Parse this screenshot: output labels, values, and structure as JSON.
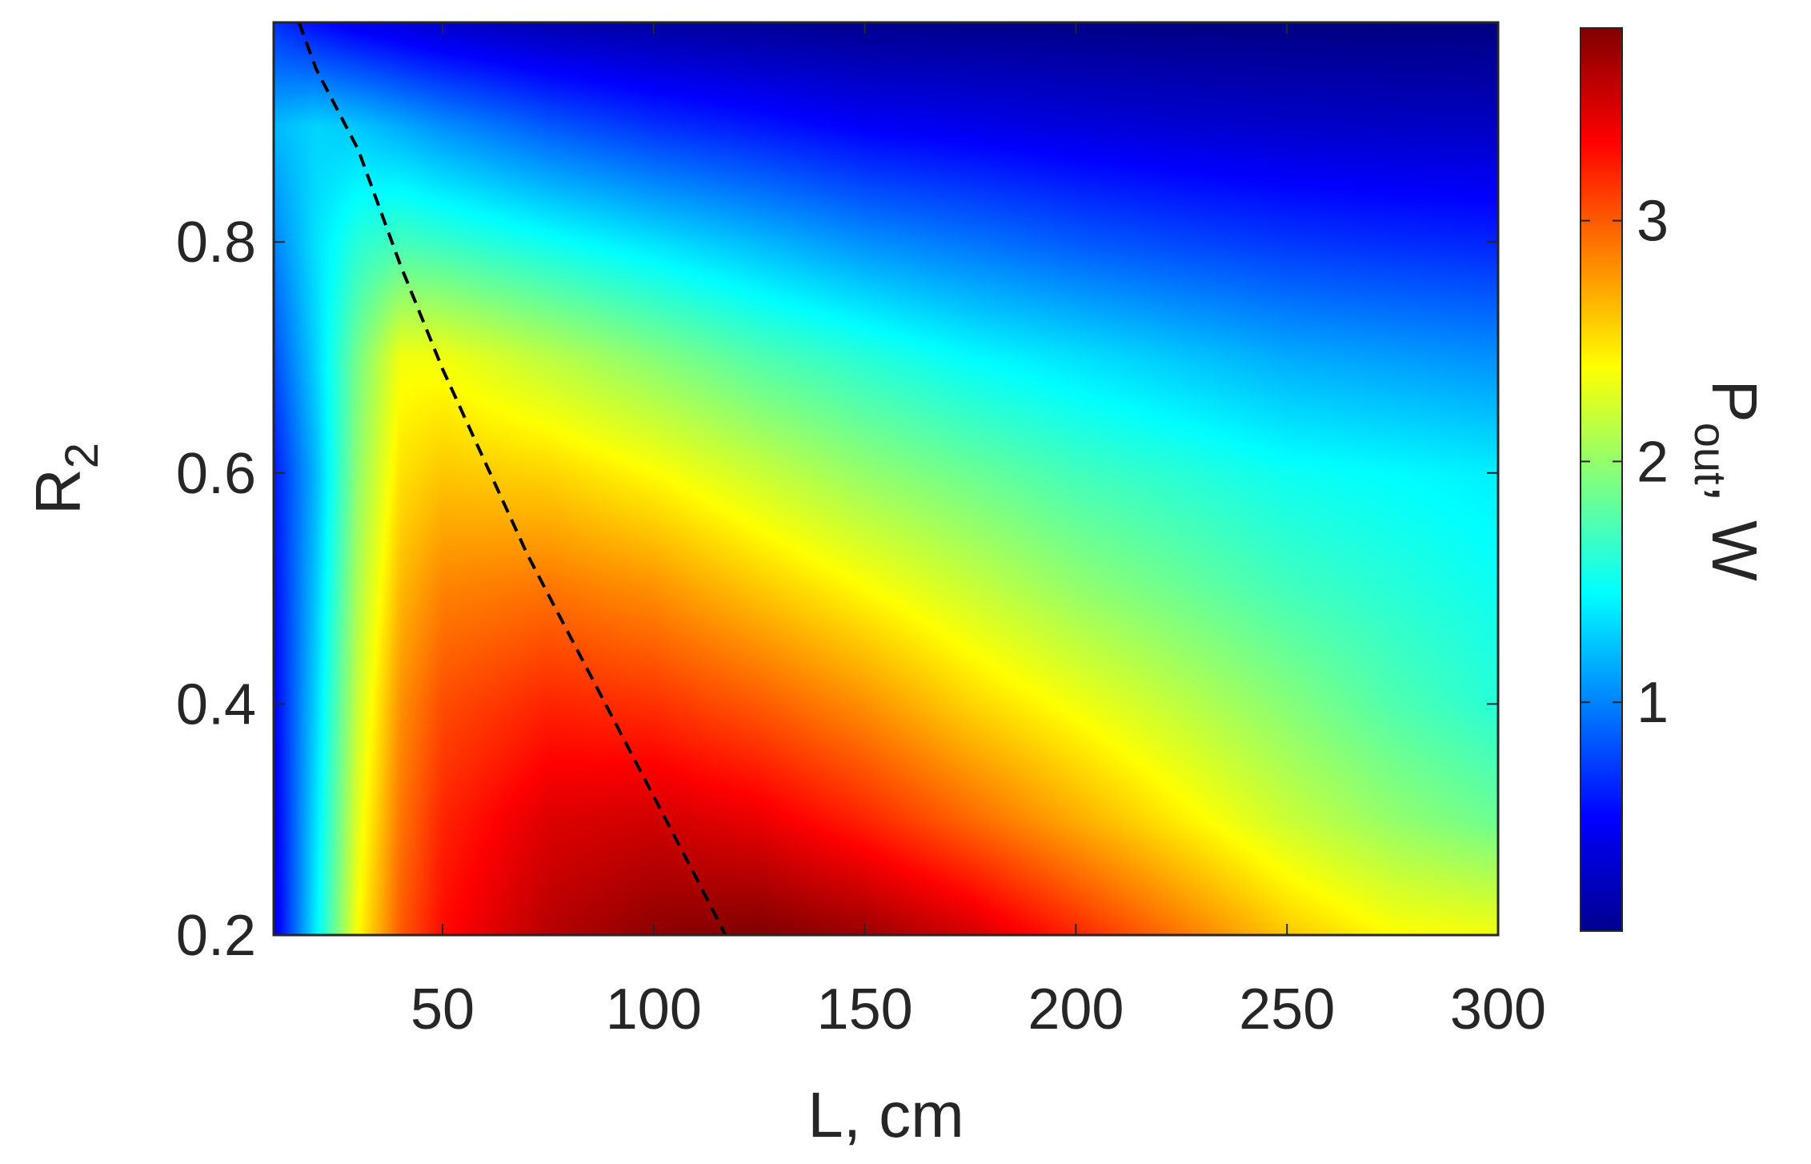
{
  "chart_data": {
    "type": "heatmap",
    "title": "",
    "xlabel": "L, cm",
    "ylabel": "R",
    "ylabel_subscript": "2",
    "xlim": [
      10,
      300
    ],
    "ylim": [
      0.2,
      0.99
    ],
    "x_ticks": [
      50,
      100,
      150,
      200,
      250,
      300
    ],
    "x_tick_labels": [
      "50",
      "100",
      "150",
      "200",
      "250",
      "300"
    ],
    "y_ticks": [
      0.2,
      0.4,
      0.6,
      0.8
    ],
    "y_tick_labels": [
      "0.2",
      "0.4",
      "0.6",
      "0.8"
    ],
    "grid": false,
    "colormap": "jet",
    "colorbar": {
      "label": "P",
      "label_subscript": "out",
      "label_suffix": ", W",
      "range": [
        0.05,
        3.8
      ],
      "ticks": [
        1,
        2,
        3
      ],
      "tick_labels": [
        "1",
        "2",
        "3"
      ]
    },
    "z_grid": {
      "x": [
        10,
        20,
        30,
        40,
        50,
        75,
        100,
        125,
        150,
        175,
        200,
        225,
        250,
        275,
        300
      ],
      "y": [
        0.2,
        0.3,
        0.4,
        0.5,
        0.6,
        0.7,
        0.8,
        0.9,
        0.99
      ],
      "values": [
        [
          0.4,
          1.4,
          2.4,
          3.0,
          3.3,
          3.6,
          3.75,
          3.8,
          3.7,
          3.5,
          3.2,
          2.9,
          2.6,
          2.4,
          2.35
        ],
        [
          0.45,
          1.35,
          2.3,
          2.9,
          3.2,
          3.45,
          3.5,
          3.4,
          3.2,
          2.95,
          2.7,
          2.45,
          2.2,
          2.0,
          1.85
        ],
        [
          0.5,
          1.3,
          2.2,
          2.8,
          3.05,
          3.2,
          3.15,
          3.0,
          2.8,
          2.55,
          2.35,
          2.15,
          1.95,
          1.75,
          1.6
        ],
        [
          0.55,
          1.25,
          2.1,
          2.65,
          2.85,
          2.9,
          2.8,
          2.6,
          2.4,
          2.2,
          2.0,
          1.85,
          1.7,
          1.6,
          1.5
        ],
        [
          0.6,
          1.2,
          2.0,
          2.5,
          2.6,
          2.55,
          2.4,
          2.2,
          2.0,
          1.85,
          1.7,
          1.6,
          1.5,
          1.45,
          1.4
        ],
        [
          0.8,
          1.3,
          1.9,
          2.35,
          2.35,
          2.15,
          1.95,
          1.75,
          1.6,
          1.45,
          1.35,
          1.25,
          1.15,
          1.1,
          1.05
        ],
        [
          1.0,
          1.35,
          1.6,
          1.7,
          1.65,
          1.5,
          1.35,
          1.2,
          1.05,
          0.95,
          0.85,
          0.78,
          0.72,
          0.68,
          0.65
        ],
        [
          1.2,
          1.3,
          1.25,
          1.15,
          1.05,
          0.85,
          0.7,
          0.6,
          0.5,
          0.45,
          0.4,
          0.36,
          0.33,
          0.31,
          0.3
        ],
        [
          0.7,
          0.55,
          0.45,
          0.38,
          0.32,
          0.22,
          0.17,
          0.13,
          0.1,
          0.09,
          0.08,
          0.07,
          0.065,
          0.06,
          0.055
        ]
      ]
    },
    "series": [
      {
        "style": "dashed",
        "color": "#000000",
        "x": [
          16,
          20,
          30,
          40,
          50,
          60,
          70,
          80,
          90,
          100,
          110,
          117
        ],
        "y": [
          0.99,
          0.95,
          0.88,
          0.78,
          0.69,
          0.61,
          0.53,
          0.46,
          0.39,
          0.32,
          0.25,
          0.2
        ]
      }
    ]
  }
}
